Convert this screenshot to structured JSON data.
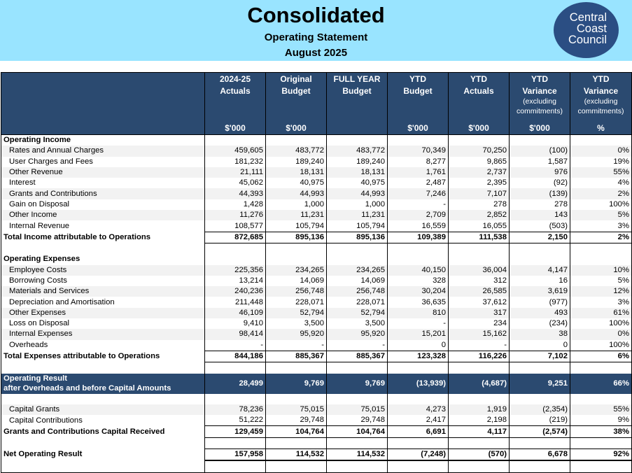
{
  "header": {
    "title": "Consolidated",
    "subtitle": "Operating Statement",
    "period": "August 2025",
    "logo_lines": [
      "Central",
      "Coast",
      "Council"
    ],
    "banner_color": "#99e4ff",
    "accent": "#2b4a70"
  },
  "columns": [
    {
      "h": [
        "2024-25",
        "Actuals"
      ],
      "sub": [],
      "unit": "$'000"
    },
    {
      "h": [
        "Original",
        "Budget"
      ],
      "sub": [],
      "unit": "$'000"
    },
    {
      "h": [
        "FULL YEAR",
        "Budget"
      ],
      "sub": [],
      "unit": ""
    },
    {
      "h": [
        "YTD",
        "Budget"
      ],
      "sub": [],
      "unit": "$'000"
    },
    {
      "h": [
        "YTD",
        "Actuals"
      ],
      "sub": [],
      "unit": "$'000"
    },
    {
      "h": [
        "YTD",
        "Variance"
      ],
      "sub": [
        "(excluding",
        "commitments)"
      ],
      "unit": "$'000"
    },
    {
      "h": [
        "YTD",
        "Variance"
      ],
      "sub": [
        "(excluding",
        "commitments)"
      ],
      "unit": "%"
    }
  ],
  "rows": [
    {
      "type": "section",
      "label": "Operating Income"
    },
    {
      "type": "item",
      "label": "Rates and Annual Charges",
      "v": [
        "459,605",
        "483,772",
        "483,772",
        "70,349",
        "70,250",
        "(100)",
        "0%"
      ]
    },
    {
      "type": "item",
      "label": "User Charges and Fees",
      "v": [
        "181,232",
        "189,240",
        "189,240",
        "8,277",
        "9,865",
        "1,587",
        "19%"
      ]
    },
    {
      "type": "item",
      "label": "Other Revenue",
      "v": [
        "21,111",
        "18,131",
        "18,131",
        "1,761",
        "2,737",
        "976",
        "55%"
      ]
    },
    {
      "type": "item",
      "label": "Interest",
      "v": [
        "45,062",
        "40,975",
        "40,975",
        "2,487",
        "2,395",
        "(92)",
        "4%"
      ]
    },
    {
      "type": "item",
      "label": "Grants and Contributions",
      "v": [
        "44,393",
        "44,993",
        "44,993",
        "7,246",
        "7,107",
        "(139)",
        "2%"
      ]
    },
    {
      "type": "item",
      "label": "Gain on Disposal",
      "v": [
        "1,428",
        "1,000",
        "1,000",
        "-",
        "278",
        "278",
        "100%"
      ]
    },
    {
      "type": "item",
      "label": "Other Income",
      "v": [
        "11,276",
        "11,231",
        "11,231",
        "2,709",
        "2,852",
        "143",
        "5%"
      ]
    },
    {
      "type": "item",
      "label": "Internal Revenue",
      "v": [
        "108,577",
        "105,794",
        "105,794",
        "16,559",
        "16,055",
        "(503)",
        "3%"
      ]
    },
    {
      "type": "total",
      "label": "Total Income attributable to Operations",
      "v": [
        "872,685",
        "895,136",
        "895,136",
        "109,389",
        "111,538",
        "2,150",
        "2%"
      ]
    },
    {
      "type": "blank"
    },
    {
      "type": "section",
      "label": "Operating Expenses"
    },
    {
      "type": "item",
      "label": "Employee Costs",
      "v": [
        "225,356",
        "234,265",
        "234,265",
        "40,150",
        "36,004",
        "4,147",
        "10%"
      ]
    },
    {
      "type": "item",
      "label": "Borrowing Costs",
      "v": [
        "13,214",
        "14,069",
        "14,069",
        "328",
        "312",
        "16",
        "5%"
      ]
    },
    {
      "type": "item",
      "label": "Materials and Services",
      "v": [
        "240,236",
        "256,748",
        "256,748",
        "30,204",
        "26,585",
        "3,619",
        "12%"
      ]
    },
    {
      "type": "item",
      "label": "Depreciation and Amortisation",
      "v": [
        "211,448",
        "228,071",
        "228,071",
        "36,635",
        "37,612",
        "(977)",
        "3%"
      ]
    },
    {
      "type": "item",
      "label": "Other Expenses",
      "v": [
        "46,109",
        "52,794",
        "52,794",
        "810",
        "317",
        "493",
        "61%"
      ]
    },
    {
      "type": "item",
      "label": "Loss on Disposal",
      "v": [
        "9,410",
        "3,500",
        "3,500",
        "-",
        "234",
        "(234)",
        "100%"
      ]
    },
    {
      "type": "item",
      "label": "Internal Expenses",
      "v": [
        "98,414",
        "95,920",
        "95,920",
        "15,201",
        "15,162",
        "38",
        "0%"
      ]
    },
    {
      "type": "item",
      "label": "Overheads",
      "v": [
        "-",
        "-",
        "-",
        "0",
        "-",
        "0",
        "100%"
      ]
    },
    {
      "type": "total",
      "label": "Total Expenses attributable to Operations",
      "v": [
        "844,186",
        "885,367",
        "885,367",
        "123,328",
        "116,226",
        "7,102",
        "6%"
      ]
    },
    {
      "type": "blank"
    },
    {
      "type": "band",
      "label": "Operating Result",
      "label2": "after Overheads and before Capital Amounts",
      "v": [
        "28,499",
        "9,769",
        "9,769",
        "(13,939)",
        "(4,687)",
        "9,251",
        "66%"
      ]
    },
    {
      "type": "blank"
    },
    {
      "type": "item",
      "label": "Capital Grants",
      "v": [
        "78,236",
        "75,015",
        "75,015",
        "4,273",
        "1,919",
        "(2,354)",
        "55%"
      ]
    },
    {
      "type": "item",
      "label": "Capital Contributions",
      "v": [
        "51,222",
        "29,748",
        "29,748",
        "2,417",
        "2,198",
        "(219)",
        "9%"
      ]
    },
    {
      "type": "total",
      "label": "Grants and Contributions Capital Received",
      "v": [
        "129,459",
        "104,764",
        "104,764",
        "6,691",
        "4,117",
        "(2,574)",
        "38%"
      ]
    },
    {
      "type": "blank"
    },
    {
      "type": "net",
      "label": "Net Operating Result",
      "v": [
        "157,958",
        "114,532",
        "114,532",
        "(7,248)",
        "(570)",
        "6,678",
        "92%"
      ]
    },
    {
      "type": "blank",
      "last": true
    }
  ]
}
